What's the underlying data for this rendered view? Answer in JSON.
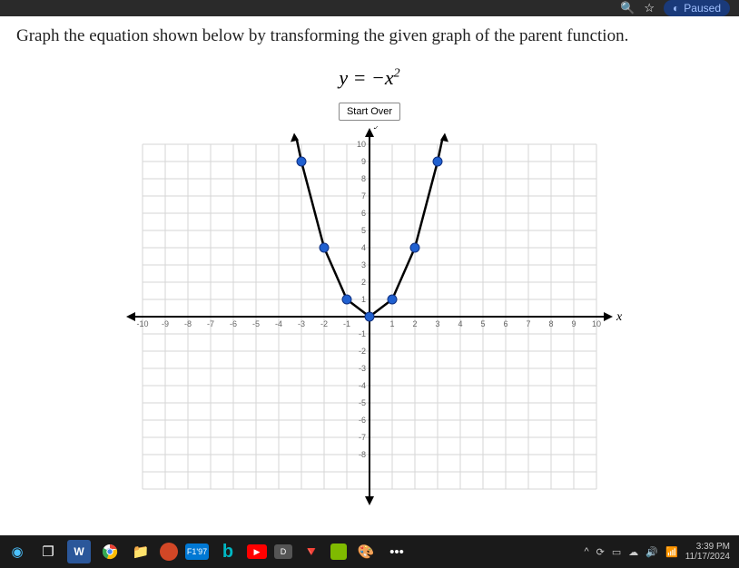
{
  "browser": {
    "paused_label": "Paused"
  },
  "problem": {
    "instruction": "Graph the equation shown below by transforming the given graph of the parent function.",
    "equation_lhs": "y",
    "equation_eq": " = ",
    "equation_rhs_sign": "−",
    "equation_rhs_var": "x",
    "equation_rhs_exp": "2",
    "start_over_label": "Start Over"
  },
  "chart": {
    "type": "scatter-line",
    "xlim": [
      -10,
      10
    ],
    "ylim": [
      -10,
      10
    ],
    "tick_step": 1,
    "x_axis_title": "x",
    "y_axis_title": "y",
    "grid_color": "#d5d5d5",
    "axis_color": "#000000",
    "background_color": "#ffffff",
    "curve": {
      "color": "#000000",
      "width": 2.5,
      "points_path": [
        [
          -3.2,
          10.24
        ],
        [
          -3,
          9
        ],
        [
          -2,
          4
        ],
        [
          -1,
          1
        ],
        [
          0,
          0
        ],
        [
          1,
          1
        ],
        [
          2,
          4
        ],
        [
          3,
          9
        ],
        [
          3.2,
          10.24
        ]
      ]
    },
    "points": {
      "color": "#2060d0",
      "radius": 5,
      "coords": [
        [
          -3,
          9
        ],
        [
          -2,
          4
        ],
        [
          -1,
          1
        ],
        [
          0,
          0
        ],
        [
          1,
          1
        ],
        [
          2,
          4
        ],
        [
          3,
          9
        ]
      ]
    },
    "y_ticks_labeled": [
      10,
      9,
      8,
      7,
      6,
      5,
      4,
      3,
      2,
      1,
      -1,
      -2,
      -3,
      -4,
      -5,
      -6,
      -7,
      -8
    ],
    "x_ticks_labeled": [
      -10,
      -9,
      -8,
      -7,
      -6,
      -5,
      -4,
      -3,
      -2,
      -1,
      1,
      2,
      3,
      4,
      5,
      6,
      7,
      8,
      9,
      10
    ]
  },
  "taskbar": {
    "time": "3:39 PM",
    "date": "11/17/2024",
    "more": "•••"
  }
}
